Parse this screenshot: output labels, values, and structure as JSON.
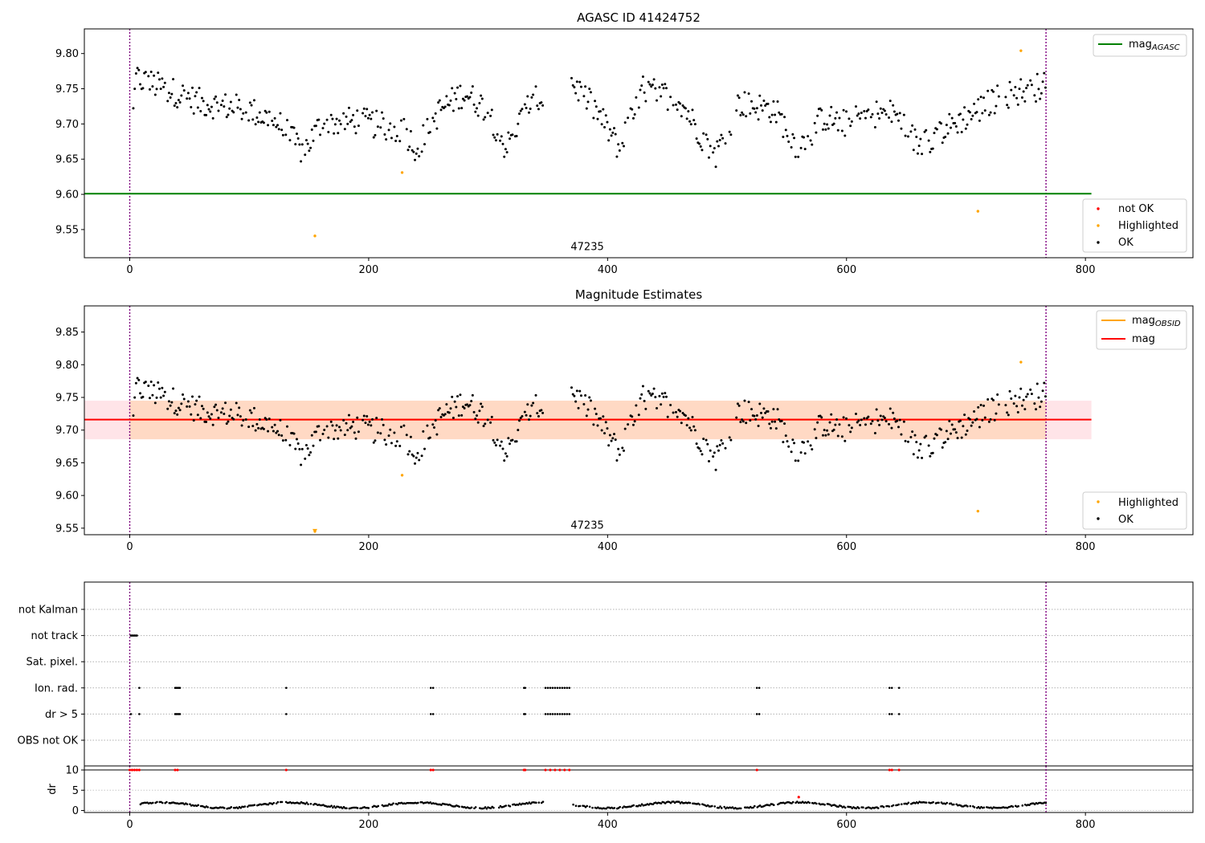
{
  "chart_data": [
    {
      "type": "scatter",
      "title": "AGASC ID 41424752",
      "xlim": [
        -38,
        890
      ],
      "ylim": [
        9.51,
        9.835
      ],
      "xticks": [
        0,
        200,
        400,
        600,
        800
      ],
      "yticks": [
        9.55,
        9.6,
        9.65,
        9.7,
        9.75,
        9.8
      ],
      "vlines": [
        0,
        767
      ],
      "annotation": {
        "text": "47235",
        "x": 383,
        "y": 9.521
      },
      "series": [
        {
          "name": "mag",
          "sub": "AGASC",
          "kind": "hline",
          "y": 9.601,
          "x_range": [
            -38,
            805
          ],
          "color": "#008000"
        },
        {
          "name": "not OK",
          "kind": "points",
          "color": "#ff0000",
          "points": []
        },
        {
          "name": "Highlighted",
          "kind": "points",
          "color": "#ffa500",
          "points": [
            [
              155,
              9.541
            ],
            [
              228,
              9.631
            ],
            [
              710,
              9.576
            ],
            [
              746,
              9.804
            ]
          ]
        },
        {
          "name": "OK",
          "kind": "points",
          "color": "#000000",
          "generator": "lightcurve"
        }
      ],
      "legends": [
        {
          "position": "upper-right",
          "entries": [
            "mag_AGASC"
          ]
        },
        {
          "position": "lower-right",
          "entries": [
            "not OK",
            "Highlighted",
            "OK"
          ]
        }
      ]
    },
    {
      "type": "scatter",
      "title": "Magnitude Estimates",
      "xlim": [
        -38,
        890
      ],
      "ylim": [
        9.54,
        9.89
      ],
      "xticks": [
        0,
        200,
        400,
        600,
        800
      ],
      "yticks": [
        9.55,
        9.6,
        9.65,
        9.7,
        9.75,
        9.8,
        9.85
      ],
      "vlines": [
        0,
        767
      ],
      "annotation": {
        "text": "47235",
        "x": 383,
        "y": 9.549
      },
      "bands": [
        {
          "x_range": [
            -38,
            805
          ],
          "y_range": [
            9.686,
            9.745
          ],
          "color": "#ffe4e8"
        },
        {
          "x_range": [
            0,
            767
          ],
          "y_range": [
            9.686,
            9.745
          ],
          "color": "#ffd9c4"
        }
      ],
      "series": [
        {
          "name": "mag",
          "sub": "OBSID",
          "kind": "hline",
          "y": 9.716,
          "x_range": [
            0,
            767
          ],
          "color": "#ffa500"
        },
        {
          "name": "mag",
          "kind": "hline",
          "y": 9.716,
          "x_range": [
            -38,
            805
          ],
          "color": "#ff0000"
        },
        {
          "name": "Highlighted",
          "kind": "points",
          "color": "#ffa500",
          "points": [
            [
              155,
              9.545
            ],
            [
              228,
              9.631
            ],
            [
              710,
              9.576
            ],
            [
              746,
              9.804
            ]
          ]
        },
        {
          "name": "OK",
          "kind": "points",
          "color": "#000000",
          "generator": "lightcurve"
        }
      ],
      "legends": [
        {
          "position": "upper-right",
          "entries": [
            "mag_OBSID",
            "mag"
          ]
        },
        {
          "position": "lower-right",
          "entries": [
            "Highlighted",
            "OK"
          ]
        }
      ]
    },
    {
      "type": "scatter",
      "title": "",
      "xlim": [
        -38,
        890
      ],
      "categories": [
        "not Kalman",
        "not track",
        "Sat. pixel.",
        "Ion. rad.",
        "dr > 5",
        "OBS not OK"
      ],
      "vlines": [
        0,
        767
      ],
      "flags": {
        "not track": [
          1,
          2,
          3,
          4,
          5,
          6
        ],
        "Ion. rad.": [
          8,
          38,
          39,
          40,
          41,
          42,
          131,
          252,
          254,
          330,
          331,
          348,
          350,
          352,
          354,
          356,
          358,
          360,
          362,
          364,
          366,
          368,
          525,
          527,
          636,
          638,
          644
        ],
        "dr > 5": [
          1,
          8,
          38,
          39,
          40,
          41,
          42,
          131,
          252,
          254,
          330,
          331,
          348,
          350,
          352,
          354,
          356,
          358,
          360,
          362,
          364,
          366,
          368,
          525,
          527,
          636,
          638,
          644
        ]
      }
    },
    {
      "type": "scatter",
      "title": "",
      "ylabel": "dr",
      "xlim": [
        -38,
        890
      ],
      "ylim": [
        -0.5,
        11
      ],
      "xticks": [
        0,
        200,
        400,
        600,
        800
      ],
      "yticks": [
        0,
        5,
        10
      ],
      "vlines": [
        0,
        767
      ],
      "hline_at": 10,
      "red_points": [
        [
          0,
          10
        ],
        [
          2,
          10
        ],
        [
          4,
          10
        ],
        [
          6,
          10
        ],
        [
          8,
          10
        ],
        [
          38,
          10
        ],
        [
          40,
          10
        ],
        [
          131,
          10
        ],
        [
          252,
          10
        ],
        [
          254,
          10
        ],
        [
          330,
          10
        ],
        [
          331,
          10
        ],
        [
          348,
          10
        ],
        [
          352,
          10
        ],
        [
          356,
          10
        ],
        [
          360,
          10
        ],
        [
          364,
          10
        ],
        [
          368,
          10
        ],
        [
          525,
          10
        ],
        [
          636,
          10
        ],
        [
          638,
          10
        ],
        [
          644,
          10
        ],
        [
          560,
          3.3
        ]
      ]
    }
  ]
}
